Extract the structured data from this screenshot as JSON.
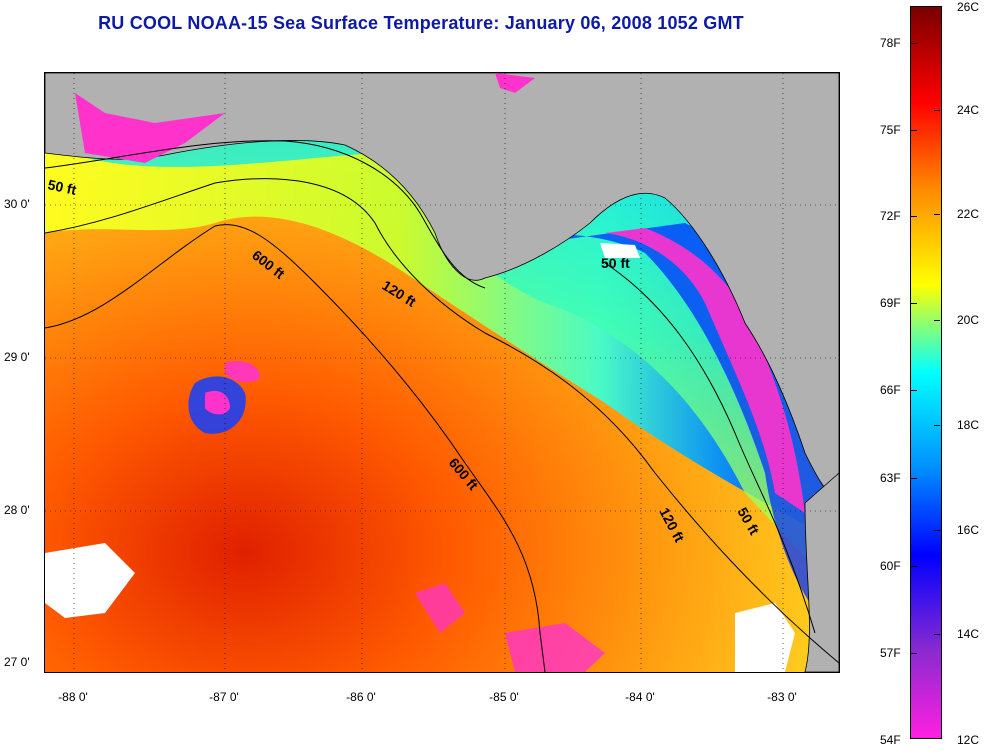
{
  "title": "RU COOL  NOAA-15  Sea Surface Temperature:  January 06, 2008 1052 GMT",
  "map": {
    "lon_labels": [
      "-88 0'",
      "-87 0'",
      "-86 0'",
      "-85 0'",
      "-84 0'",
      "-83 0'"
    ],
    "lat_labels": [
      "30 0'",
      "29 0'",
      "28 0'",
      "27 0'"
    ],
    "isobath_labels": [
      "50 ft",
      "600 ft",
      "120 ft",
      "50 ft",
      "600 ft",
      "120 ft",
      "50 ft"
    ],
    "land_color": "#b1b1b1",
    "cloud_color": "#ff33cc"
  },
  "colorbar": {
    "fahrenheit_labels": [
      "78F",
      "75F",
      "72F",
      "69F",
      "66F",
      "63F",
      "60F",
      "57F",
      "54F"
    ],
    "celsius_labels": [
      "26C",
      "24C",
      "22C",
      "20C",
      "18C",
      "16C",
      "14C",
      "12C"
    ],
    "colors": [
      "#7a0000",
      "#ff0000",
      "#ff8a00",
      "#ffff00",
      "#00ffff",
      "#0090ff",
      "#0000ff",
      "#8a2ad0",
      "#ff20e0"
    ]
  }
}
